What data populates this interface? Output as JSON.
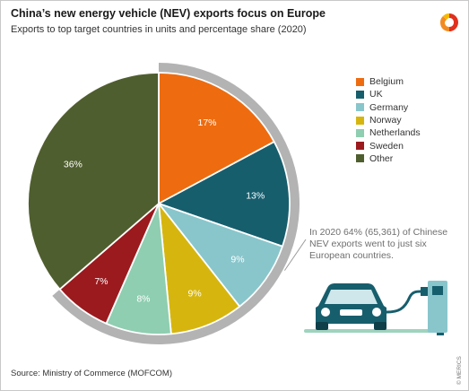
{
  "title": "China’s new energy vehicle (NEV) exports focus on Europe",
  "subtitle": "Exports to top target countries in units and percentage share (2020)",
  "annotation": "In 2020 64% (65,361) of Chinese NEV exports went to just six European countries.",
  "source": "Source: Ministry of Commerce (MOFCOM)",
  "brand": "© MERICS",
  "icons": {
    "logo": "merics-logo-icon",
    "illustration": "electric-car-charging-icon"
  },
  "chart_data": {
    "type": "pie",
    "title": "China’s new energy vehicle (NEV) exports focus on Europe",
    "subtitle": "Exports to top target countries in units and percentage share (2020)",
    "legend_position": "right",
    "highlight": {
      "slices": [
        "Belgium",
        "UK",
        "Germany",
        "Norway",
        "Netherlands",
        "Sweden"
      ],
      "total_percent": 64,
      "units": 65361
    },
    "slices": [
      {
        "label": "Belgium",
        "value": 17,
        "display": "17%",
        "color": "#ee6c0f"
      },
      {
        "label": "UK",
        "value": 13,
        "display": "13%",
        "color": "#175e6d"
      },
      {
        "label": "Germany",
        "value": 9,
        "display": "9%",
        "color": "#89c6cc"
      },
      {
        "label": "Norway",
        "value": 9,
        "display": "9%",
        "color": "#d6b60e"
      },
      {
        "label": "Netherlands",
        "value": 8,
        "display": "8%",
        "color": "#8fceb0"
      },
      {
        "label": "Sweden",
        "value": 7,
        "display": "7%",
        "color": "#9b1a1e"
      },
      {
        "label": "Other",
        "value": 36,
        "display": "36%",
        "color": "#4f5e2e"
      }
    ]
  }
}
